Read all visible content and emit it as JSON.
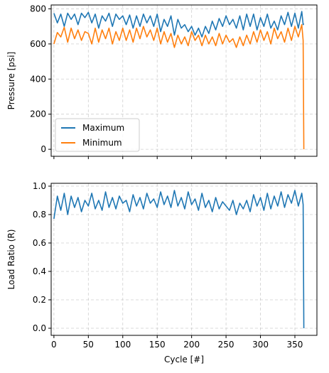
{
  "chart_data": [
    {
      "type": "line",
      "title": "",
      "xlabel": "",
      "ylabel": "Pressure [psi]",
      "xlim": [
        -4,
        382
      ],
      "ylim": [
        -40,
        822
      ],
      "xticks": [
        0,
        50,
        100,
        150,
        200,
        250,
        300,
        350
      ],
      "yticks": [
        0,
        200,
        400,
        600,
        800
      ],
      "xtick_labels_visible": false,
      "grid": true,
      "legend": "lower-left",
      "series": [
        {
          "name": "Maximum",
          "color": "#1f77b4",
          "x": [
            0,
            5,
            10,
            15,
            20,
            25,
            30,
            35,
            40,
            45,
            50,
            55,
            60,
            65,
            70,
            75,
            80,
            85,
            90,
            95,
            100,
            105,
            110,
            115,
            120,
            125,
            130,
            135,
            140,
            145,
            150,
            155,
            160,
            165,
            170,
            175,
            180,
            185,
            190,
            195,
            200,
            205,
            210,
            215,
            220,
            225,
            230,
            235,
            240,
            245,
            250,
            255,
            260,
            265,
            270,
            275,
            280,
            285,
            290,
            295,
            300,
            305,
            310,
            315,
            320,
            325,
            330,
            335,
            340,
            345,
            350,
            355,
            360,
            362,
            363
          ],
          "y": [
            775,
            720,
            770,
            700,
            775,
            740,
            770,
            710,
            775,
            750,
            780,
            720,
            770,
            690,
            760,
            730,
            775,
            700,
            770,
            740,
            760,
            710,
            765,
            690,
            760,
            700,
            770,
            720,
            760,
            700,
            770,
            670,
            740,
            700,
            760,
            650,
            740,
            690,
            710,
            670,
            700,
            650,
            690,
            640,
            700,
            660,
            730,
            680,
            745,
            700,
            760,
            710,
            740,
            690,
            760,
            680,
            770,
            700,
            770,
            680,
            750,
            700,
            770,
            690,
            730,
            680,
            760,
            710,
            780,
            700,
            775,
            690,
            785,
            710,
            715
          ]
        },
        {
          "name": "Minimum",
          "color": "#ff7f0e",
          "x": [
            0,
            5,
            10,
            15,
            20,
            25,
            30,
            35,
            40,
            45,
            50,
            55,
            60,
            65,
            70,
            75,
            80,
            85,
            90,
            95,
            100,
            105,
            110,
            115,
            120,
            125,
            130,
            135,
            140,
            145,
            150,
            155,
            160,
            165,
            170,
            175,
            180,
            185,
            190,
            195,
            200,
            205,
            210,
            215,
            220,
            225,
            230,
            235,
            240,
            245,
            250,
            255,
            260,
            265,
            270,
            275,
            280,
            285,
            290,
            295,
            300,
            305,
            310,
            315,
            320,
            325,
            330,
            335,
            340,
            345,
            350,
            355,
            360,
            362,
            363
          ],
          "y": [
            600,
            665,
            640,
            695,
            610,
            690,
            630,
            680,
            620,
            670,
            660,
            600,
            690,
            610,
            680,
            630,
            690,
            600,
            670,
            620,
            690,
            620,
            680,
            610,
            690,
            630,
            700,
            640,
            680,
            620,
            690,
            600,
            670,
            610,
            660,
            580,
            650,
            600,
            640,
            590,
            670,
            620,
            650,
            590,
            650,
            600,
            640,
            590,
            660,
            600,
            650,
            610,
            630,
            580,
            640,
            590,
            650,
            600,
            670,
            610,
            680,
            620,
            670,
            600,
            690,
            630,
            670,
            610,
            690,
            620,
            700,
            640,
            710,
            620,
            0
          ]
        }
      ]
    },
    {
      "type": "line",
      "title": "",
      "xlabel": "Cycle [#]",
      "ylabel": "Load Ratio (R)",
      "xlim": [
        -4,
        382
      ],
      "ylim": [
        -0.05,
        1.02
      ],
      "xticks": [
        0,
        50,
        100,
        150,
        200,
        250,
        300,
        350
      ],
      "yticks": [
        0.0,
        0.2,
        0.4,
        0.6,
        0.8,
        1.0
      ],
      "grid": true,
      "series": [
        {
          "name": "",
          "color": "#1f77b4",
          "x": [
            0,
            5,
            10,
            15,
            20,
            25,
            30,
            35,
            40,
            45,
            50,
            55,
            60,
            65,
            70,
            75,
            80,
            85,
            90,
            95,
            100,
            105,
            110,
            115,
            120,
            125,
            130,
            135,
            140,
            145,
            150,
            155,
            160,
            165,
            170,
            175,
            180,
            185,
            190,
            195,
            200,
            205,
            210,
            215,
            220,
            225,
            230,
            235,
            240,
            245,
            250,
            255,
            260,
            265,
            270,
            275,
            280,
            285,
            290,
            295,
            300,
            305,
            310,
            315,
            320,
            325,
            330,
            335,
            340,
            345,
            350,
            355,
            360,
            362,
            363
          ],
          "y": [
            0.77,
            0.93,
            0.83,
            0.95,
            0.8,
            0.93,
            0.85,
            0.92,
            0.82,
            0.9,
            0.86,
            0.95,
            0.84,
            0.9,
            0.83,
            0.96,
            0.85,
            0.92,
            0.84,
            0.93,
            0.88,
            0.9,
            0.82,
            0.94,
            0.86,
            0.92,
            0.84,
            0.95,
            0.88,
            0.91,
            0.85,
            0.96,
            0.87,
            0.93,
            0.85,
            0.97,
            0.86,
            0.92,
            0.84,
            0.96,
            0.87,
            0.91,
            0.83,
            0.95,
            0.85,
            0.9,
            0.82,
            0.92,
            0.84,
            0.89,
            0.86,
            0.83,
            0.9,
            0.8,
            0.88,
            0.84,
            0.9,
            0.82,
            0.94,
            0.86,
            0.92,
            0.83,
            0.95,
            0.84,
            0.93,
            0.86,
            0.96,
            0.85,
            0.94,
            0.88,
            0.97,
            0.86,
            0.95,
            0.87,
            0.0
          ]
        }
      ]
    }
  ]
}
